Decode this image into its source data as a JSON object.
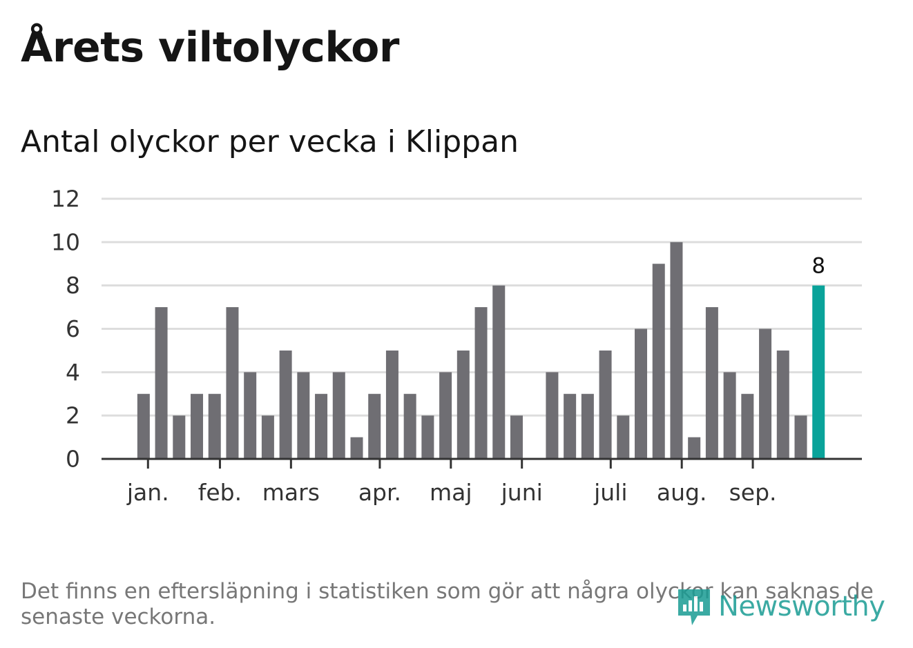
{
  "title": "Årets viltolyckor",
  "subtitle": "Antal olyckor per vecka i Klippan",
  "footnote": "Det finns en eftersläpning i statistiken som gör att några olyckor kan saknas de senaste veckorna.",
  "brand": {
    "name": "Newsworthy",
    "icon": "newsworthy-logo-icon",
    "color": "#1a9c94"
  },
  "chart_data": {
    "type": "bar",
    "title": "Antal olyckor per vecka i Klippan",
    "xlabel": "",
    "ylabel": "",
    "ylim": [
      0,
      12
    ],
    "yticks": [
      "0",
      "2",
      "4",
      "6",
      "8",
      "10",
      "12"
    ],
    "grid": true,
    "weeks": [
      1,
      2,
      3,
      4,
      5,
      6,
      7,
      8,
      9,
      10,
      11,
      12,
      13,
      14,
      15,
      16,
      17,
      18,
      19,
      20,
      21,
      22,
      23,
      24,
      25,
      26,
      27,
      28,
      29,
      30,
      31,
      32,
      33,
      34,
      35,
      36,
      37,
      38,
      39
    ],
    "values": [
      3,
      7,
      2,
      3,
      3,
      7,
      4,
      2,
      5,
      4,
      3,
      4,
      1,
      3,
      5,
      3,
      2,
      4,
      5,
      7,
      8,
      2,
      0,
      4,
      3,
      3,
      5,
      2,
      6,
      9,
      10,
      1,
      7,
      4,
      3,
      6,
      5,
      2,
      8
    ],
    "highlight_index": 38,
    "highlight_label": "8",
    "month_ticks": [
      {
        "label": "jan.",
        "week": 1.25
      },
      {
        "label": "feb.",
        "week": 5.3
      },
      {
        "label": "mars",
        "week": 9.3
      },
      {
        "label": "apr.",
        "week": 14.3
      },
      {
        "label": "maj",
        "week": 18.3
      },
      {
        "label": "juni",
        "week": 22.3
      },
      {
        "label": "juli",
        "week": 27.3
      },
      {
        "label": "aug.",
        "week": 31.3
      },
      {
        "label": "sep.",
        "week": 35.3
      }
    ],
    "colors": {
      "bar": "#6f6e73",
      "highlight": "#0aa39a",
      "grid": "#dddddd",
      "axis": "#333333"
    }
  }
}
